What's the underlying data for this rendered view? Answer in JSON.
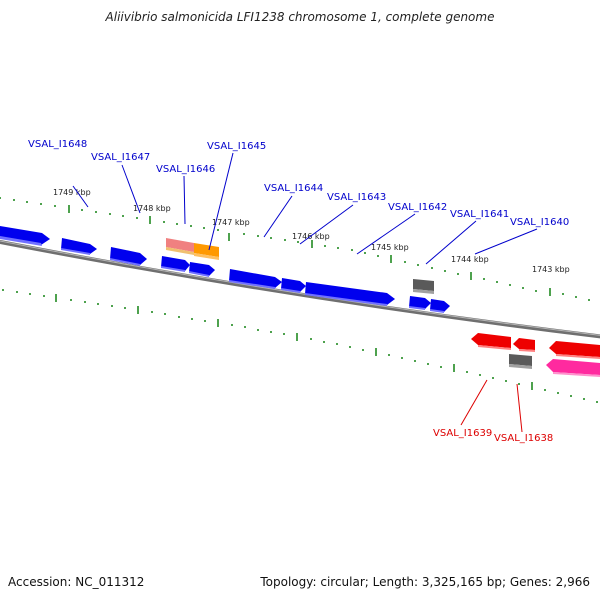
{
  "title": "Aliivibrio salmonicida LFI1238 chromosome 1, complete genome",
  "accession": "Accession: NC_011312",
  "summary": "Topology: circular; Length: 3,325,165 bp; Genes: 2,966",
  "colors": {
    "forward_gene": "#1010e0",
    "reverse_gene": "#e00000",
    "pink_gene": "#ff3aa8",
    "grey_gene": "#555555",
    "orange_gene": "#ff9900",
    "salmon_gene": "#f08080",
    "tick": "#228b22",
    "backbone": "#808080",
    "forward_label": "#0000cc",
    "reverse_label": "#dd0000"
  },
  "kbp_labels": [
    "1749 kbp",
    "1748 kbp",
    "1747 kbp",
    "1746 kbp",
    "1745 kbp",
    "1744 kbp",
    "1743 kbp"
  ],
  "gene_labels": {
    "forward": [
      "VSAL_I1648",
      "VSAL_I1647",
      "VSAL_I1646",
      "VSAL_I1645",
      "VSAL_I1644",
      "VSAL_I1643",
      "VSAL_I1642",
      "VSAL_I1641",
      "VSAL_I1640"
    ],
    "reverse": [
      "VSAL_I1639",
      "VSAL_I1638"
    ]
  }
}
